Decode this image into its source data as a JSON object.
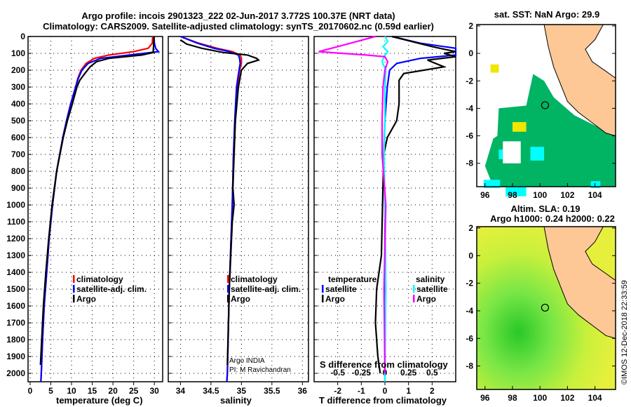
{
  "title_line1": "Argo profile: incois 2901323_222 02-Jun-2017 3.772S 100.37E (NRT data)",
  "title_line2": "Climatology: CARS2009. Satellite-adjusted climatology: synTS_20170602.nc (0.59d earlier)",
  "colors": {
    "climatology": "#ff0000",
    "satellite": "#0000ff",
    "argo": "#000000",
    "sal_satellite": "#00ffff",
    "sal_argo": "#ff00ff",
    "land": "#fdc896",
    "sst_ocean": "#00b464",
    "sst_cyan": "#00ffff",
    "sla_base": "#b4f03c"
  },
  "chart_data": [
    {
      "type": "line",
      "name": "temperature",
      "xlabel": "temperature (deg C)",
      "xlim": [
        -0.5,
        32
      ],
      "ylim": [
        2050,
        0
      ],
      "xticks": [
        0,
        5,
        10,
        15,
        20,
        25,
        30
      ],
      "yticks": [
        0,
        100,
        200,
        300,
        400,
        500,
        600,
        700,
        800,
        900,
        1000,
        1100,
        1200,
        1300,
        1400,
        1500,
        1600,
        1700,
        1800,
        1900,
        2000
      ],
      "legend": [
        "climatology",
        "satellite-adj. clim.",
        "Argo"
      ],
      "series": [
        {
          "name": "climatology",
          "color": "#ff0000",
          "depth": [
            0,
            40,
            70,
            90,
            110,
            130,
            160,
            200,
            250,
            300,
            400,
            500,
            600,
            800,
            1000,
            1200,
            1400,
            1600,
            1800,
            2000,
            2050
          ],
          "values": [
            29.6,
            29.5,
            28.5,
            25,
            19,
            15.5,
            13.5,
            12.3,
            11.5,
            11,
            9.8,
            8.8,
            7.9,
            6.4,
            5.4,
            4.6,
            4,
            3.4,
            3,
            2.7,
            2.6
          ]
        },
        {
          "name": "satellite-adj. clim.",
          "color": "#0000ff",
          "depth": [
            0,
            40,
            70,
            90,
            110,
            130,
            160,
            200,
            250,
            300,
            400,
            500,
            600,
            800,
            1000,
            1200,
            1400,
            1600,
            1800,
            2000,
            2050
          ],
          "values": [
            29.9,
            30,
            30.3,
            31,
            24,
            17,
            14,
            12.5,
            11.6,
            11,
            9.8,
            8.8,
            7.9,
            6.4,
            5.4,
            4.6,
            4,
            3.4,
            3,
            2.7,
            2.6
          ]
        },
        {
          "name": "Argo",
          "color": "#000000",
          "depth": [
            0,
            60,
            95,
            110,
            130,
            150,
            180,
            220,
            260,
            300,
            400,
            500,
            600,
            800,
            1000,
            1200,
            1400,
            1600,
            1800,
            1950
          ],
          "values": [
            29.9,
            29.8,
            29.7,
            27,
            19,
            16,
            14.5,
            13.2,
            12,
            11.3,
            10.2,
            9,
            8,
            6.4,
            5.3,
            4.5,
            3.8,
            3.2,
            2.8,
            2.5
          ]
        }
      ]
    },
    {
      "type": "line",
      "name": "salinity",
      "xlabel": "salinity",
      "xlim": [
        33.8,
        36.1
      ],
      "ylim": [
        2050,
        0
      ],
      "xticks": [
        34,
        34.5,
        35,
        35.5,
        36
      ],
      "legend": [
        "climatology",
        "satellite-adj. clim.",
        "Argo"
      ],
      "annotations": [
        "Argo INDIA",
        "PI: M Ravichandran"
      ],
      "series": [
        {
          "name": "climatology",
          "color": "#ff0000",
          "depth": [
            0,
            40,
            70,
            90,
            110,
            130,
            160,
            200,
            300,
            500,
            700,
            1000,
            1500,
            2000,
            2050
          ],
          "values": [
            34.0,
            34.3,
            34.6,
            34.85,
            34.98,
            35.0,
            35.0,
            34.97,
            34.93,
            34.9,
            34.87,
            34.85,
            34.8,
            34.77,
            34.76
          ]
        },
        {
          "name": "satellite-adj. clim.",
          "color": "#0000ff",
          "depth": [
            0,
            40,
            70,
            90,
            110,
            130,
            160,
            200,
            300,
            500,
            700,
            1000,
            1500,
            2000,
            2050
          ],
          "values": [
            34.0,
            34.28,
            34.55,
            34.8,
            34.95,
            34.97,
            34.98,
            34.96,
            34.92,
            34.89,
            34.87,
            34.85,
            34.8,
            34.77,
            34.76
          ]
        },
        {
          "name": "Argo",
          "color": "#000000",
          "depth": [
            20,
            45,
            70,
            95,
            110,
            130,
            140,
            160,
            200,
            300,
            500,
            700,
            900,
            1000,
            1100,
            1500,
            1800,
            1950
          ],
          "values": [
            34.0,
            34.1,
            34.35,
            34.7,
            35.1,
            35.25,
            35.28,
            35.1,
            35.0,
            34.95,
            34.9,
            34.88,
            34.86,
            34.88,
            34.85,
            34.8,
            34.78,
            34.77
          ]
        }
      ]
    },
    {
      "type": "line",
      "name": "difference",
      "xlabel": "T difference from climatology",
      "xlabel2": "S difference from climatology",
      "xlim": [
        -3,
        3
      ],
      "s_xlim": [
        -0.75,
        0.75
      ],
      "ylim": [
        2050,
        0
      ],
      "xticks": [
        -2,
        -1,
        0,
        1,
        2
      ],
      "s_xticks": [
        -0.5,
        -0.25,
        0,
        0.25,
        0.5
      ],
      "legend_temperature": {
        "title": "temperature",
        "items": [
          "satellite",
          "Argo"
        ]
      },
      "legend_salinity": {
        "title": "salinity",
        "items": [
          "satellite",
          "Argo"
        ]
      },
      "series": [
        {
          "name": "T satellite",
          "axis": "T",
          "color": "#0000ff",
          "depth": [
            0,
            40,
            70,
            90,
            110,
            130,
            160,
            200,
            300,
            500,
            700,
            1000,
            1500,
            2000,
            2050
          ],
          "values": [
            0.3,
            1.5,
            3,
            3,
            3,
            1.5,
            0.5,
            0.2,
            0.1,
            0,
            -0.05,
            0,
            0,
            0,
            0
          ]
        },
        {
          "name": "T Argo",
          "axis": "T",
          "color": "#000000",
          "depth": [
            0,
            60,
            90,
            100,
            120,
            140,
            180,
            220,
            260,
            300,
            400,
            500,
            600,
            700,
            1000,
            1300,
            1500,
            1700,
            1900,
            2000
          ],
          "values": [
            0.3,
            2,
            3,
            2.5,
            3,
            1.8,
            2.5,
            0.8,
            0.6,
            0.6,
            0.6,
            0.5,
            0.1,
            -0.05,
            -0.1,
            -0.15,
            -0.35,
            -0.4,
            -0.3,
            -0.2
          ]
        },
        {
          "name": "S satellite",
          "axis": "S",
          "color": "#00ffff",
          "depth": [
            0,
            30,
            60,
            90,
            120,
            150,
            200,
            300,
            500,
            700,
            1000,
            1500,
            2000,
            2050
          ],
          "values": [
            0,
            0.03,
            -0.02,
            0.03,
            -0.01,
            -0.03,
            0.01,
            0,
            0,
            -0.01,
            0,
            0.01,
            0,
            0
          ]
        },
        {
          "name": "S Argo",
          "axis": "S",
          "color": "#ff00ff",
          "depth": [
            0,
            30,
            60,
            90,
            110,
            120,
            150,
            200,
            300,
            500,
            700,
            1000,
            1500,
            2000
          ],
          "values": [
            -0.1,
            -0.3,
            -0.5,
            -0.7,
            -0.2,
            0,
            0.03,
            0,
            -0.02,
            -0.03,
            -0.03,
            0.01,
            -0.01,
            0
          ]
        }
      ]
    },
    {
      "type": "heatmap",
      "name": "sst_map",
      "title": "sat. SST: NaN Argo: 29.9",
      "xlim": [
        95.4,
        105.5
      ],
      "ylim": [
        -9.7,
        2.1
      ],
      "xticks": [
        96,
        98,
        100,
        102,
        104
      ],
      "yticks": [
        2,
        0,
        -2,
        -4,
        -6,
        -8
      ],
      "argo_position": [
        100.37,
        -3.772
      ]
    },
    {
      "type": "heatmap",
      "name": "sla_map",
      "title": "Altim. SLA: 0.19",
      "subtitle": "Argo h1000: 0.24 h2000: 0.22",
      "xlim": [
        95.4,
        105.5
      ],
      "ylim": [
        -9.7,
        2.1
      ],
      "xticks": [
        96,
        98,
        100,
        102,
        104
      ],
      "yticks": [
        2,
        0,
        -2,
        -4,
        -6,
        -8
      ],
      "argo_position": [
        100.37,
        -3.772
      ]
    }
  ],
  "credit": "©IMOS 12-Dec-2018 22:33:59"
}
